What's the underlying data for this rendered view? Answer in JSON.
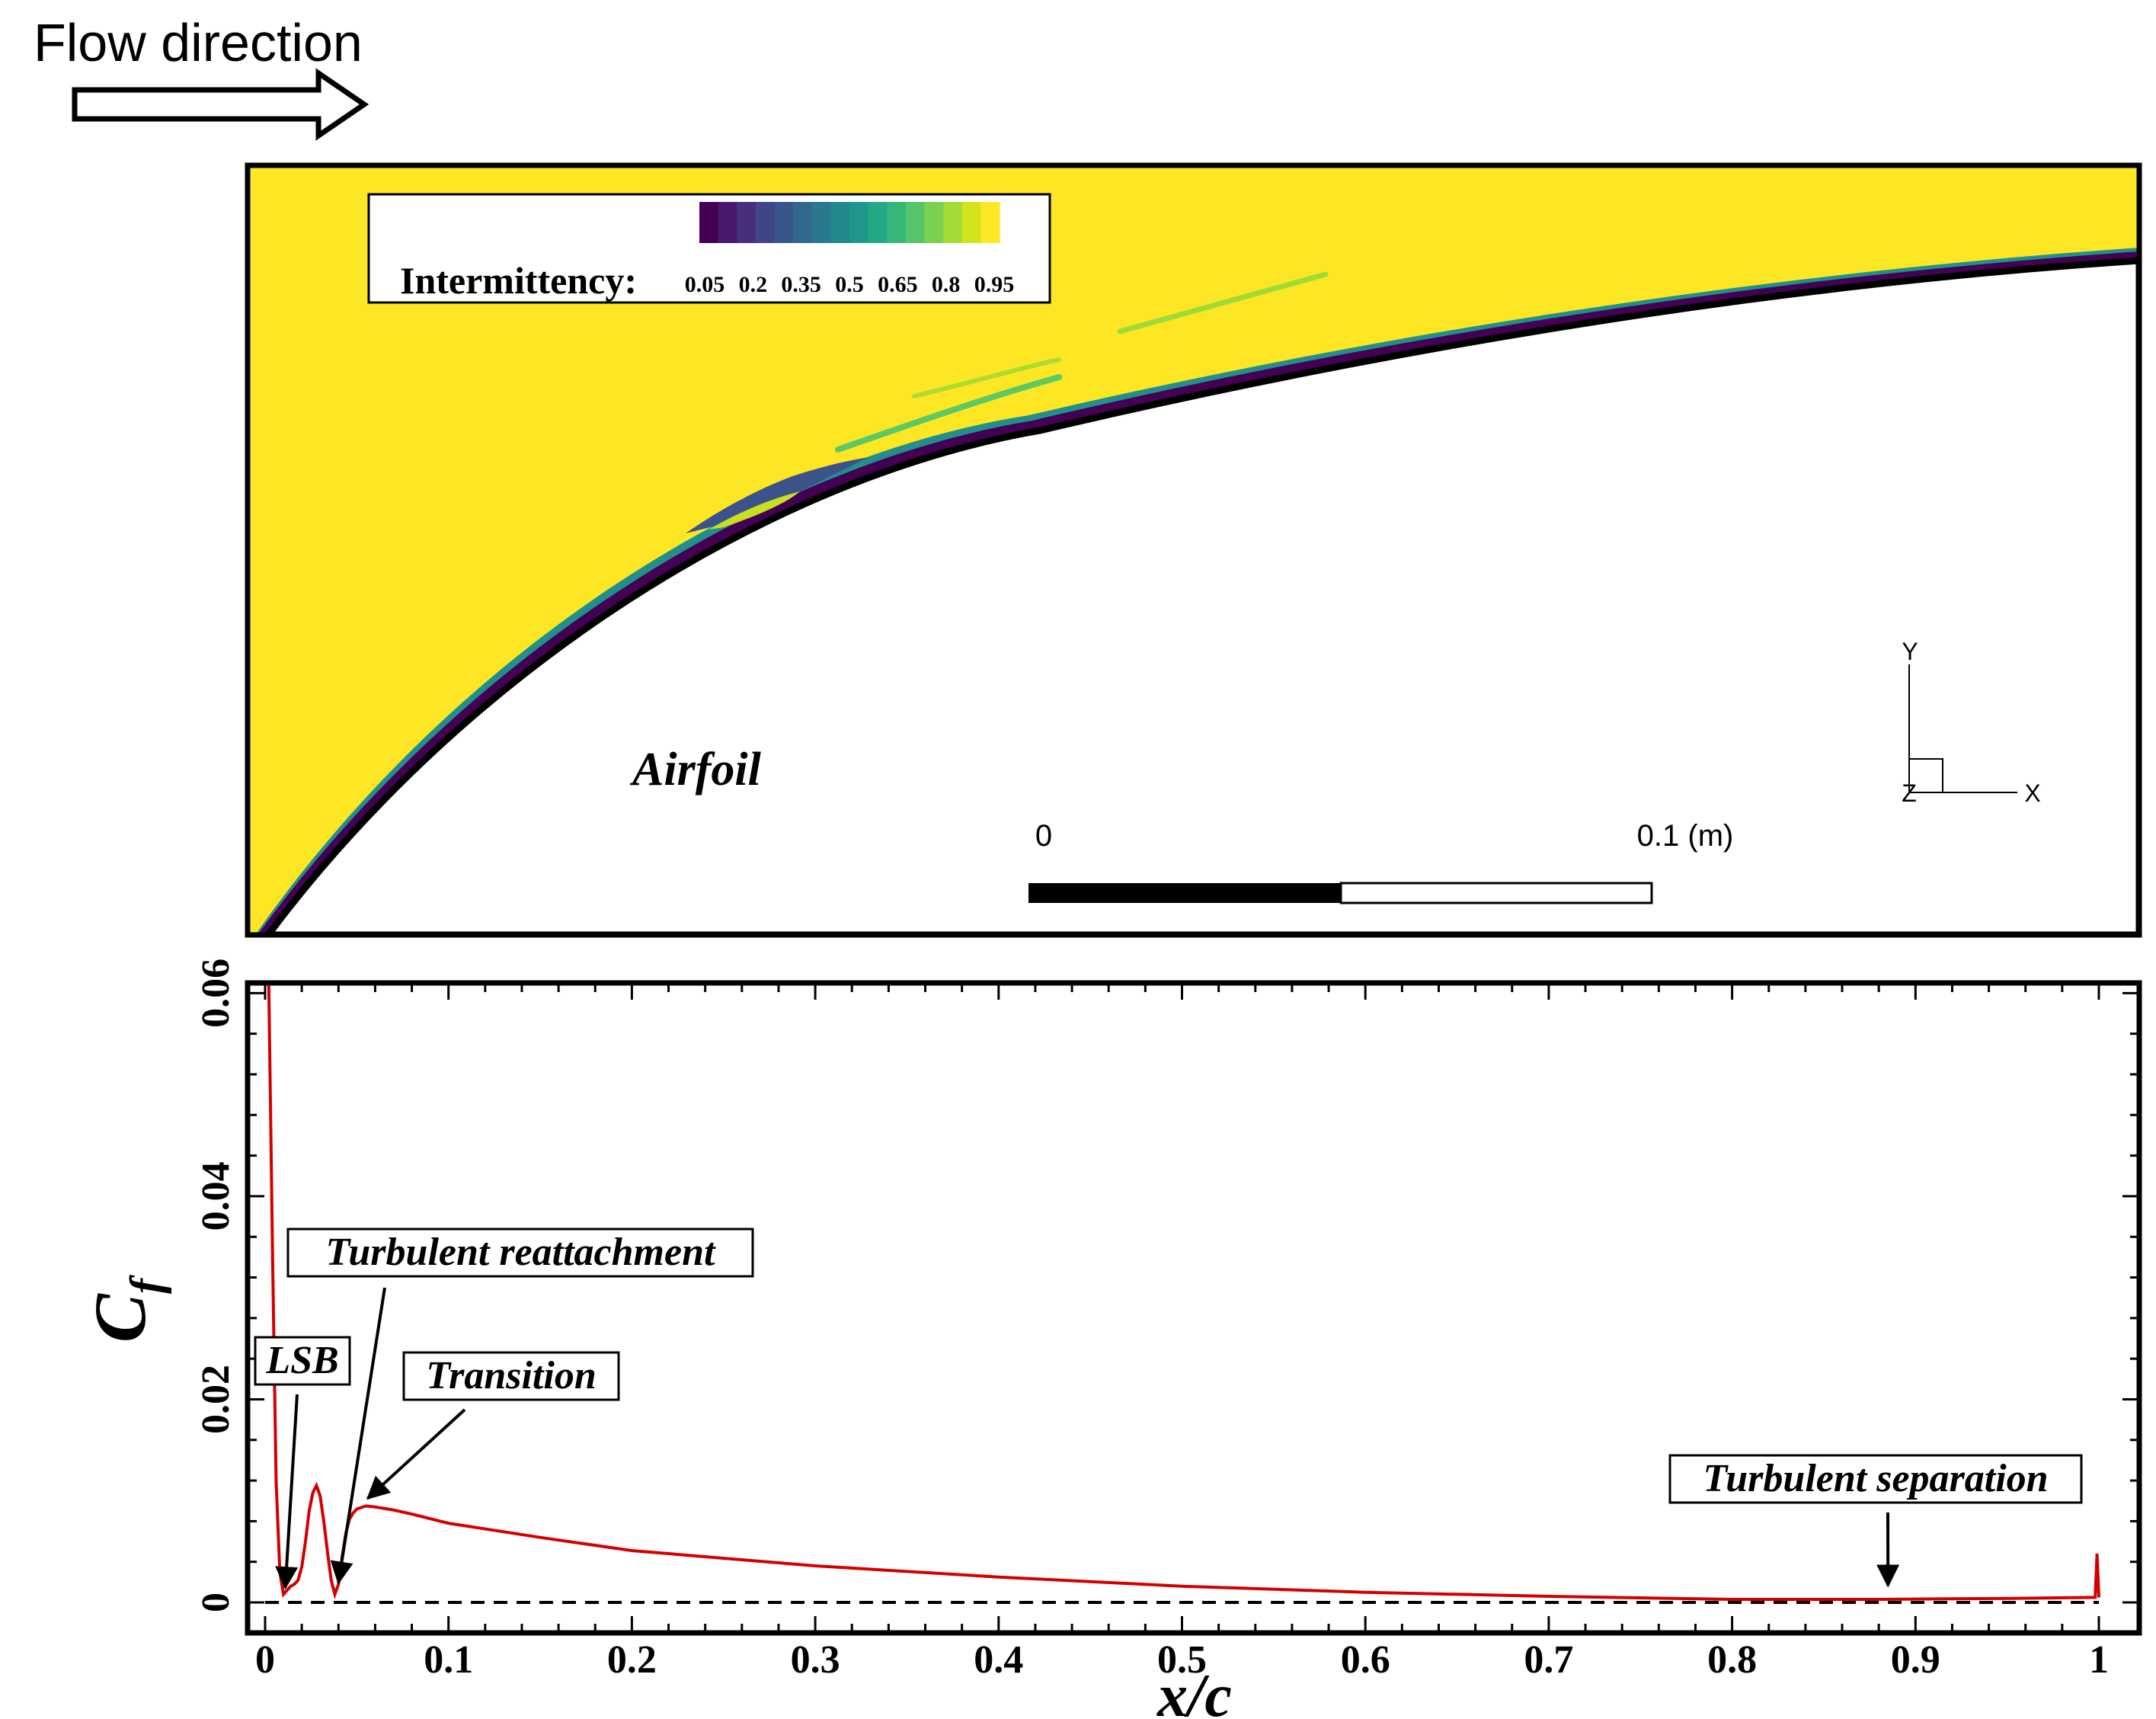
{
  "header": {
    "flow_label": "Flow direction"
  },
  "contour": {
    "colorbar": {
      "label": "Intermittency:",
      "ticks": [
        "0.05",
        "0.2",
        "0.35",
        "0.5",
        "0.65",
        "0.8",
        "0.95"
      ],
      "colors": [
        "#440154",
        "#481a6c",
        "#472f7d",
        "#414487",
        "#39568c",
        "#31688e",
        "#2a788e",
        "#23888e",
        "#1f988b",
        "#22a884",
        "#35b779",
        "#54c568",
        "#7ad151",
        "#a5db36",
        "#d2e21b",
        "#fde725"
      ]
    },
    "airfoil_label": "Airfoil",
    "scale_bar": {
      "start_label": "0",
      "end_label": "0.1 (m)"
    },
    "axes_triad": {
      "x": "X",
      "y": "Y",
      "z": "Z"
    },
    "colors": {
      "freestream": "#fde725",
      "laminar": "#440154",
      "airfoil": "#ffffff"
    }
  },
  "chart_data": {
    "type": "line",
    "title": "",
    "xlabel": "x/c",
    "ylabel": "C_f",
    "xlim": [
      0,
      1
    ],
    "ylim": [
      -0.003,
      0.061
    ],
    "xticks": [
      0,
      0.1,
      0.2,
      0.3,
      0.4,
      0.5,
      0.6,
      0.7,
      0.8,
      0.9,
      1
    ],
    "xtick_labels": [
      "0",
      "0.1",
      "0.2",
      "0.3",
      "0.4",
      "0.5",
      "0.6",
      "0.7",
      "0.8",
      "0.9",
      "1"
    ],
    "yticks": [
      0,
      0.02,
      0.04,
      0.06
    ],
    "ytick_labels": [
      "0",
      "0.02",
      "0.04",
      "0.06"
    ],
    "series": [
      {
        "name": "Cf",
        "color": "#d40000",
        "x": [
          0.002,
          0.004,
          0.006,
          0.008,
          0.01,
          0.012,
          0.014,
          0.016,
          0.018,
          0.02,
          0.022,
          0.024,
          0.026,
          0.028,
          0.03,
          0.032,
          0.034,
          0.036,
          0.038,
          0.04,
          0.042,
          0.044,
          0.046,
          0.048,
          0.05,
          0.055,
          0.06,
          0.07,
          0.08,
          0.1,
          0.15,
          0.2,
          0.3,
          0.4,
          0.5,
          0.6,
          0.7,
          0.8,
          0.88,
          0.95,
          0.998,
          0.999,
          1.0
        ],
        "y": [
          0.061,
          0.035,
          0.012,
          0.003,
          0.0008,
          0.0012,
          0.0016,
          0.0018,
          0.0022,
          0.0035,
          0.006,
          0.009,
          0.0108,
          0.0115,
          0.0105,
          0.008,
          0.005,
          0.0022,
          0.0008,
          0.0018,
          0.0045,
          0.0068,
          0.0082,
          0.0088,
          0.0092,
          0.0095,
          0.0094,
          0.0091,
          0.0087,
          0.0078,
          0.0064,
          0.0051,
          0.0036,
          0.0025,
          0.0016,
          0.001,
          0.0006,
          0.0003,
          0.0003,
          0.0004,
          0.0005,
          0.0048,
          0.0005
        ]
      }
    ],
    "reference_line": {
      "y": 0,
      "style": "dashed",
      "color": "#000000"
    },
    "annotations": [
      {
        "text": "LSB",
        "target_x": 0.011,
        "target_y": 0.001
      },
      {
        "text": "Turbulent reattachment",
        "target_x": 0.04,
        "target_y": 0.0015
      },
      {
        "text": "Transition",
        "target_x": 0.056,
        "target_y": 0.0098
      },
      {
        "text": "Turbulent separation",
        "target_x": 0.885,
        "target_y": 0.0012
      }
    ]
  }
}
